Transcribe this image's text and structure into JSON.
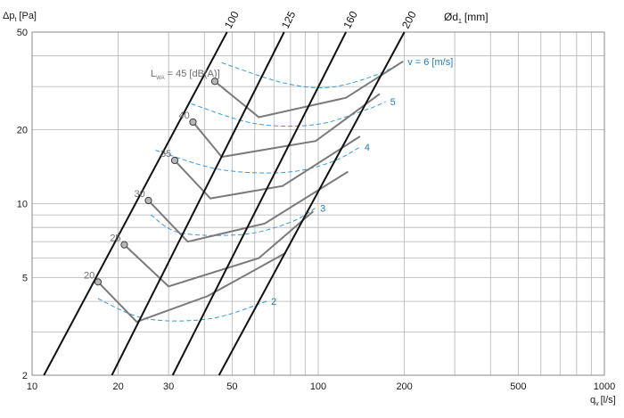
{
  "chart_data": {
    "type": "line",
    "x_scale": "log",
    "y_scale": "log",
    "xlim": [
      10,
      1000
    ],
    "ylim": [
      2,
      50
    ],
    "xlabel": {
      "main": "q",
      "sub": "v",
      "unit": "[l/s]"
    },
    "ylabel": {
      "main": "Δp",
      "sub": "t",
      "unit": "[Pa]"
    },
    "series_title": {
      "main": "Ød",
      "sub": "1",
      "unit": "[mm]"
    },
    "x_ticks": [
      10,
      20,
      30,
      50,
      100,
      200,
      500,
      1000
    ],
    "y_ticks": [
      2,
      5,
      10,
      20,
      50
    ],
    "grid": true,
    "duct_series": [
      {
        "name": "100",
        "points": [
          [
            11,
            2
          ],
          [
            48,
            50
          ]
        ]
      },
      {
        "name": "125",
        "points": [
          [
            19,
            2
          ],
          [
            76,
            50
          ]
        ]
      },
      {
        "name": "160",
        "points": [
          [
            31,
            2
          ],
          [
            125,
            50
          ]
        ]
      },
      {
        "name": "200",
        "points": [
          [
            45,
            2
          ],
          [
            200,
            50
          ]
        ]
      }
    ],
    "sound_curves": [
      {
        "name": "20",
        "points": [
          [
            17,
            4.8
          ],
          [
            23.2,
            3.3
          ],
          [
            41,
            4.2
          ],
          [
            77,
            6.3
          ]
        ]
      },
      {
        "name": "25",
        "points": [
          [
            21,
            6.8
          ],
          [
            30,
            4.6
          ],
          [
            62,
            6.0
          ],
          [
            96,
            9.3
          ]
        ]
      },
      {
        "name": "30",
        "points": [
          [
            25.5,
            10.3
          ],
          [
            35,
            7.0
          ],
          [
            65,
            8.3
          ],
          [
            127,
            13.5
          ]
        ]
      },
      {
        "name": "35",
        "points": [
          [
            31.5,
            15.0
          ],
          [
            42,
            10.5
          ],
          [
            75,
            11.8
          ],
          [
            140,
            18.8
          ]
        ]
      },
      {
        "name": "40",
        "points": [
          [
            36.5,
            21.5
          ],
          [
            46,
            15.5
          ],
          [
            98,
            18.0
          ],
          [
            164,
            28.0
          ]
        ]
      },
      {
        "name": "45",
        "points": [
          [
            43.5,
            31.5
          ],
          [
            62,
            22.5
          ],
          [
            125,
            27.0
          ],
          [
            198,
            38.0
          ]
        ]
      }
    ],
    "sound_labels": [
      "20",
      "25",
      "30",
      "35",
      "40"
    ],
    "sound_label_top": {
      "main": "L",
      "sub": "WA",
      "rest": " = 45 [dB(A)]"
    },
    "velocity_curves": [
      {
        "name": "2",
        "label": "2",
        "points": [
          [
            17,
            4.1
          ],
          [
            25,
            3.4
          ],
          [
            42,
            3.4
          ],
          [
            66,
            4.0
          ]
        ]
      },
      {
        "name": "3",
        "label": "3",
        "points": [
          [
            26,
            9.0
          ],
          [
            33,
            7.6
          ],
          [
            55,
            7.5
          ],
          [
            80,
            8.4
          ],
          [
            98,
            9.6
          ]
        ]
      },
      {
        "name": "4",
        "label": "4",
        "points": [
          [
            27,
            16.5
          ],
          [
            45,
            13.8
          ],
          [
            76,
            13.4
          ],
          [
            110,
            14.7
          ],
          [
            140,
            17.0
          ]
        ]
      },
      {
        "name": "5",
        "label": "5",
        "points": [
          [
            36,
            25.5
          ],
          [
            60,
            21.2
          ],
          [
            98,
            21.0
          ],
          [
            145,
            24.0
          ],
          [
            172,
            26.0
          ]
        ]
      },
      {
        "name": "6",
        "label": "v = 6  [m/s]",
        "points": [
          [
            46,
            37.5
          ],
          [
            76,
            31.0
          ],
          [
            110,
            29.8
          ],
          [
            160,
            33.5
          ],
          [
            198,
            38.0
          ]
        ]
      }
    ],
    "colors": {
      "duct": "#111111",
      "sound": "#7a7a7a",
      "velocity": "#3a9ad9",
      "velocity_text": "#1f7fc0",
      "marker_fill": "#b8b8b8",
      "grid": "#b3b3b3",
      "grid_major": "#8a8a8a"
    }
  }
}
